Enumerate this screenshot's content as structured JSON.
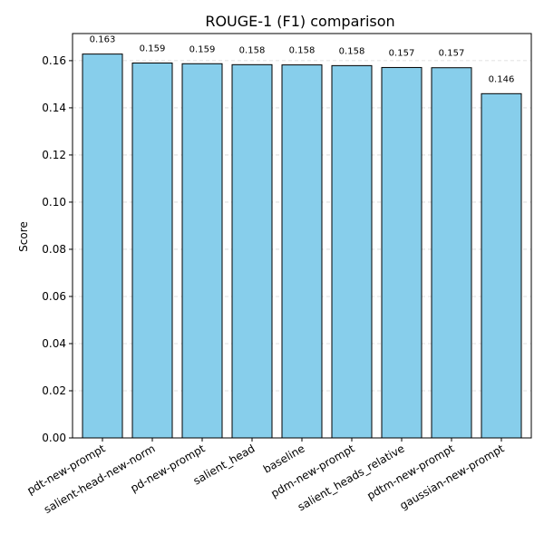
{
  "chart_data": {
    "type": "bar",
    "title": "ROUGE-1 (F1) comparison",
    "xlabel": "",
    "ylabel": "Score",
    "categories": [
      "pdt-new-prompt",
      "salient-head-new-norm",
      "pd-new-prompt",
      "salient_head",
      "baseline",
      "pdm-new-prompt",
      "salient_heads_relative",
      "pdtm-new-prompt",
      "gaussian-new-prompt"
    ],
    "values": [
      0.1628,
      0.159,
      0.1587,
      0.1583,
      0.1582,
      0.1579,
      0.1571,
      0.157,
      0.146
    ],
    "data_labels": [
      "0.163",
      "0.159",
      "0.159",
      "0.158",
      "0.158",
      "0.158",
      "0.157",
      "0.157",
      "0.146"
    ],
    "ylim": [
      0,
      0.1715
    ],
    "yticks": [
      0.0,
      0.02,
      0.04,
      0.06,
      0.08,
      0.1,
      0.12,
      0.14,
      0.16
    ],
    "ytick_labels": [
      "0.00",
      "0.02",
      "0.04",
      "0.06",
      "0.08",
      "0.10",
      "0.12",
      "0.14",
      "0.16"
    ],
    "grid": "y",
    "bar_color": "#87CEEB",
    "edge_color": "#000000"
  }
}
